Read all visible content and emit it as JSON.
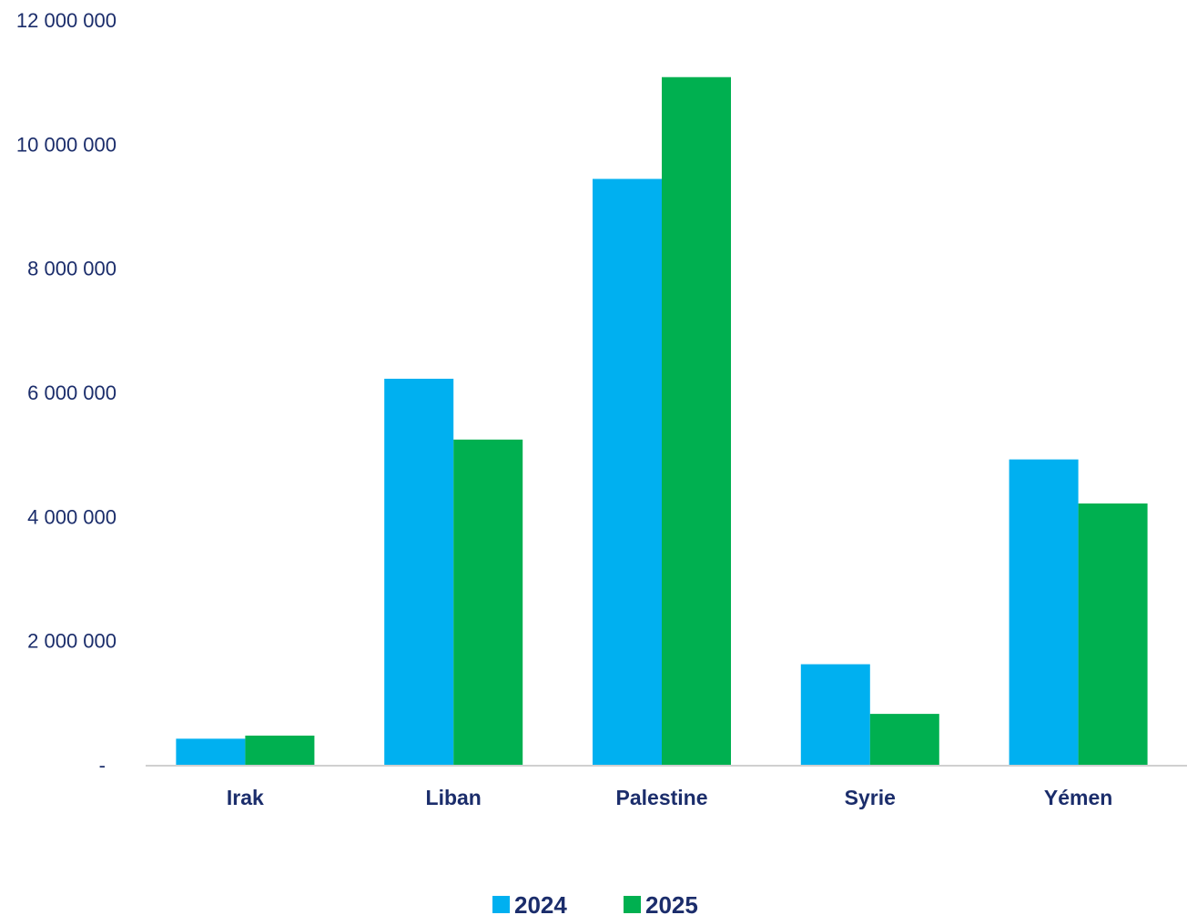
{
  "chart_data": {
    "type": "bar",
    "title": "",
    "xlabel": "",
    "ylabel": "",
    "categories": [
      "Irak",
      "Liban",
      "Palestine",
      "Syrie",
      "Yémen"
    ],
    "series": [
      {
        "name": "2024",
        "color": "#00b0f0",
        "values": [
          420000,
          6220000,
          9440000,
          1620000,
          4920000
        ]
      },
      {
        "name": "2025",
        "color": "#00b050",
        "values": [
          470000,
          5240000,
          11080000,
          820000,
          4210000
        ]
      }
    ],
    "ylim": [
      0,
      12000000
    ],
    "yticks": [
      0,
      2000000,
      4000000,
      6000000,
      8000000,
      10000000,
      12000000
    ],
    "ytick_labels": [
      "-",
      "2 000 000",
      "4 000 000",
      "6 000 000",
      "8 000 000",
      "10 000 000",
      "12 000 000"
    ],
    "grid": false,
    "legend_position": "bottom"
  }
}
